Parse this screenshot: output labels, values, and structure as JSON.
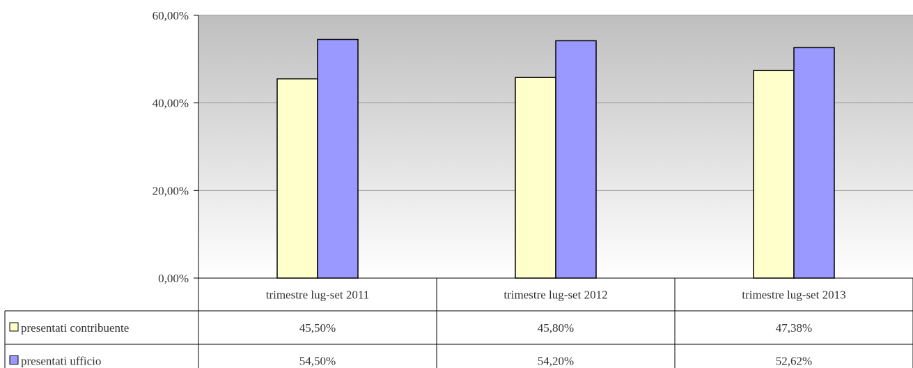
{
  "chart_data": {
    "type": "bar",
    "title": "",
    "xlabel": "",
    "ylabel": "",
    "ylim": [
      0,
      0.6
    ],
    "y_ticks": [
      {
        "value": 0,
        "label": "0,00%"
      },
      {
        "value": 0.2,
        "label": "20,00%"
      },
      {
        "value": 0.4,
        "label": "40,00%"
      },
      {
        "value": 0.6,
        "label": "60,00%"
      }
    ],
    "grid": true,
    "legend": "data-table",
    "categories": [
      "trimestre lug-set 2011",
      "trimestre lug-set 2012",
      "trimestre lug-set 2013"
    ],
    "series": [
      {
        "name": "presentati contribuente",
        "color": "#ffffcc",
        "values": [
          0.455,
          0.458,
          0.4738
        ],
        "labels": [
          "45,50%",
          "45,80%",
          "47,38%"
        ]
      },
      {
        "name": "presentati ufficio",
        "color": "#9999ff",
        "values": [
          0.545,
          0.542,
          0.5262
        ],
        "labels": [
          "54,50%",
          "54,20%",
          "52,62%"
        ]
      }
    ]
  }
}
